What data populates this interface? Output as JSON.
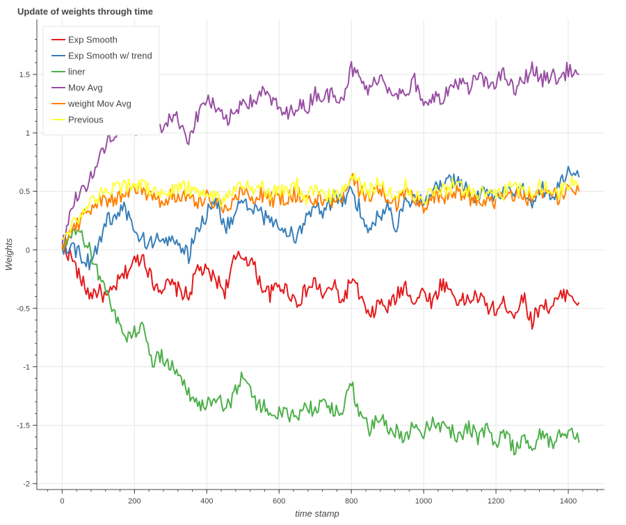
{
  "chart_data": {
    "type": "line",
    "title": "Update of weights through time",
    "xlabel": "time stamp",
    "ylabel": "Weights",
    "xlim": [
      -70,
      1500
    ],
    "ylim": [
      -2.05,
      1.97
    ],
    "x_ticks": [
      0,
      200,
      400,
      600,
      800,
      1000,
      1200,
      1400
    ],
    "y_ticks": [
      1.5,
      1,
      0.5,
      0,
      -0.5,
      -1,
      -1.5,
      -2
    ],
    "y_tick_labels": [
      "1.5",
      "1",
      "0.5",
      "0",
      "-0.5",
      "-1",
      "-1.5",
      "-2"
    ],
    "grid": true,
    "legend_position": "top-left",
    "x": [
      0,
      25,
      50,
      75,
      100,
      125,
      150,
      175,
      200,
      225,
      250,
      275,
      300,
      325,
      350,
      375,
      400,
      425,
      450,
      475,
      500,
      525,
      550,
      575,
      600,
      625,
      650,
      675,
      700,
      725,
      750,
      775,
      800,
      825,
      850,
      875,
      900,
      925,
      950,
      975,
      1000,
      1025,
      1050,
      1075,
      1100,
      1125,
      1150,
      1175,
      1200,
      1225,
      1250,
      1275,
      1300,
      1325,
      1350,
      1375,
      1400,
      1430
    ],
    "series": [
      {
        "name": "Exp Smooth",
        "color": "#e41a1c",
        "values": [
          0.02,
          -0.05,
          -0.25,
          -0.38,
          -0.35,
          -0.42,
          -0.3,
          -0.2,
          -0.1,
          -0.05,
          -0.28,
          -0.32,
          -0.3,
          -0.35,
          -0.4,
          -0.15,
          -0.2,
          -0.25,
          -0.35,
          -0.1,
          -0.05,
          -0.1,
          -0.3,
          -0.38,
          -0.3,
          -0.35,
          -0.45,
          -0.35,
          -0.28,
          -0.4,
          -0.3,
          -0.45,
          -0.25,
          -0.4,
          -0.6,
          -0.45,
          -0.5,
          -0.4,
          -0.3,
          -0.45,
          -0.35,
          -0.45,
          -0.28,
          -0.35,
          -0.45,
          -0.42,
          -0.4,
          -0.48,
          -0.52,
          -0.45,
          -0.55,
          -0.4,
          -0.62,
          -0.45,
          -0.5,
          -0.42,
          -0.35,
          -0.45
        ]
      },
      {
        "name": "Exp Smooth w/ trend",
        "color": "#377eb8",
        "values": [
          0.02,
          0.05,
          -0.05,
          -0.1,
          0.05,
          0.25,
          0.3,
          0.35,
          0.15,
          0.08,
          0.05,
          0.12,
          0.1,
          0.02,
          -0.05,
          0.2,
          0.3,
          0.45,
          0.2,
          0.25,
          0.45,
          0.35,
          0.3,
          0.25,
          0.2,
          0.15,
          0.1,
          0.3,
          0.35,
          0.3,
          0.45,
          0.4,
          0.5,
          0.35,
          0.15,
          0.3,
          0.35,
          0.2,
          0.45,
          0.42,
          0.4,
          0.5,
          0.55,
          0.6,
          0.55,
          0.5,
          0.45,
          0.5,
          0.45,
          0.5,
          0.45,
          0.5,
          0.4,
          0.55,
          0.45,
          0.55,
          0.65,
          0.62
        ]
      },
      {
        "name": "liner",
        "color": "#4daf4a",
        "values": [
          0.02,
          0.1,
          0.15,
          0.0,
          -0.2,
          -0.35,
          -0.6,
          -0.75,
          -0.7,
          -0.65,
          -0.95,
          -0.92,
          -0.98,
          -1.1,
          -1.2,
          -1.35,
          -1.3,
          -1.25,
          -1.35,
          -1.25,
          -1.05,
          -1.25,
          -1.35,
          -1.35,
          -1.4,
          -1.42,
          -1.45,
          -1.3,
          -1.4,
          -1.25,
          -1.4,
          -1.35,
          -1.15,
          -1.4,
          -1.55,
          -1.45,
          -1.5,
          -1.55,
          -1.6,
          -1.5,
          -1.55,
          -1.45,
          -1.5,
          -1.55,
          -1.6,
          -1.5,
          -1.6,
          -1.55,
          -1.65,
          -1.55,
          -1.7,
          -1.6,
          -1.75,
          -1.55,
          -1.65,
          -1.6,
          -1.55,
          -1.65
        ]
      },
      {
        "name": "Mov Avg",
        "color": "#984ea3",
        "values": [
          0.05,
          0.35,
          0.5,
          0.6,
          0.75,
          0.95,
          1.0,
          1.05,
          0.98,
          1.15,
          1.1,
          1.05,
          1.15,
          1.1,
          0.95,
          1.15,
          1.3,
          1.2,
          1.1,
          1.15,
          1.3,
          1.25,
          1.35,
          1.3,
          1.2,
          1.15,
          1.25,
          1.2,
          1.35,
          1.3,
          1.35,
          1.3,
          1.55,
          1.45,
          1.35,
          1.5,
          1.4,
          1.35,
          1.3,
          1.45,
          1.2,
          1.35,
          1.25,
          1.4,
          1.45,
          1.35,
          1.5,
          1.4,
          1.45,
          1.5,
          1.35,
          1.45,
          1.55,
          1.45,
          1.5,
          1.45,
          1.55,
          1.5
        ]
      },
      {
        "name": "weight Mov Avg",
        "color": "#ff7f00",
        "values": [
          0.05,
          0.15,
          0.25,
          0.35,
          0.4,
          0.42,
          0.45,
          0.48,
          0.52,
          0.5,
          0.45,
          0.42,
          0.45,
          0.48,
          0.45,
          0.42,
          0.45,
          0.4,
          0.35,
          0.45,
          0.5,
          0.45,
          0.48,
          0.42,
          0.45,
          0.45,
          0.48,
          0.4,
          0.45,
          0.42,
          0.4,
          0.45,
          0.6,
          0.5,
          0.45,
          0.52,
          0.45,
          0.38,
          0.5,
          0.42,
          0.38,
          0.45,
          0.45,
          0.48,
          0.5,
          0.45,
          0.42,
          0.45,
          0.4,
          0.45,
          0.48,
          0.42,
          0.45,
          0.5,
          0.48,
          0.45,
          0.52,
          0.5
        ]
      },
      {
        "name": "Previous",
        "color": "#ffff33",
        "values": [
          0.1,
          0.2,
          0.3,
          0.4,
          0.45,
          0.5,
          0.52,
          0.55,
          0.58,
          0.55,
          0.5,
          0.48,
          0.5,
          0.55,
          0.52,
          0.48,
          0.5,
          0.45,
          0.42,
          0.5,
          0.55,
          0.5,
          0.55,
          0.48,
          0.5,
          0.5,
          0.55,
          0.45,
          0.5,
          0.48,
          0.45,
          0.5,
          0.65,
          0.55,
          0.5,
          0.58,
          0.5,
          0.42,
          0.55,
          0.48,
          0.42,
          0.5,
          0.5,
          0.55,
          0.55,
          0.5,
          0.48,
          0.5,
          0.45,
          0.5,
          0.55,
          0.48,
          0.5,
          0.55,
          0.55,
          0.5,
          0.58,
          0.55
        ]
      }
    ]
  }
}
